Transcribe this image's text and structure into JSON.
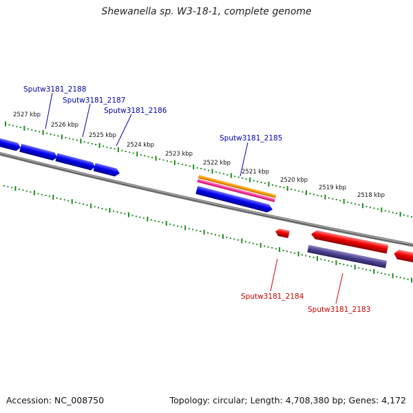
{
  "title": "Shewanella sp. W3-18-1, complete genome",
  "footer": {
    "accession": "Accession: NC_008750",
    "topology": "Topology: circular; Length: 4,708,380 bp; Genes: 4,172"
  },
  "colors": {
    "backbone": "#808080",
    "tick": "#1a8a1a",
    "forward_gene": "#0000ee",
    "reverse_gene": "#ee0000",
    "forward_label": "#0000aa",
    "reverse_label": "#cc0000",
    "orange_feature": "#ff9900",
    "pink_feature": "#ff3399",
    "purple_feature": "#4a3f8a"
  },
  "ruler": [
    "2527 kbp",
    "2526 kbp",
    "2525 kbp",
    "2524 kbp",
    "2523 kbp",
    "2522 kbp",
    "2521 kbp",
    "2520 kbp",
    "2519 kbp",
    "2518 kbp"
  ],
  "gene_labels": {
    "forward": [
      "Sputw3181_2188",
      "Sputw3181_2187",
      "Sputw3181_2186",
      "Sputw3181_2185"
    ],
    "reverse": [
      "Sputw3181_2184",
      "Sputw3181_2183"
    ]
  }
}
